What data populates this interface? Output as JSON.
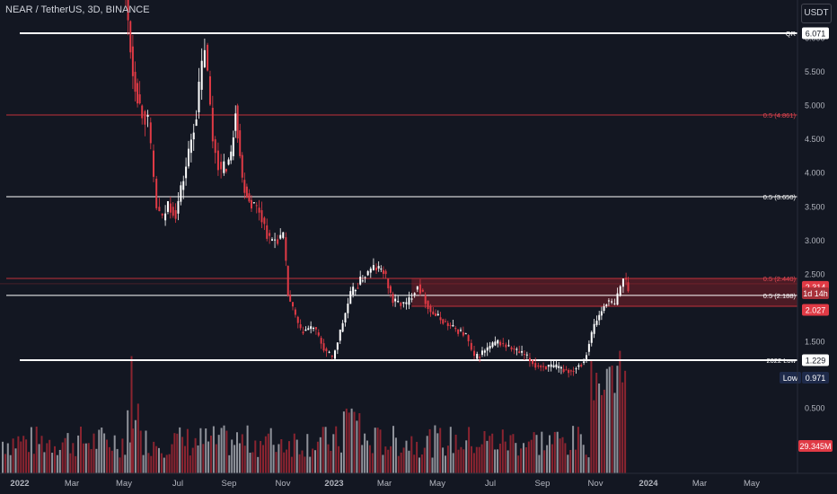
{
  "header": {
    "symbol": "NEAR / TetherUS, 3D, BINANCE",
    "currency": "USDT"
  },
  "colors": {
    "background": "#131722",
    "up": "#ffffff",
    "down": "#e03a45",
    "volume_up": "#8f929a",
    "volume_down": "#8b2430",
    "white_level": "#ffffff",
    "red_level": "#c2303a",
    "zone_fill": "#7a1f28",
    "axis_text": "#b2b5be"
  },
  "chart_data": {
    "type": "candlestick",
    "price_ticks": [
      "6.000",
      "5.500",
      "5.000",
      "4.500",
      "4.000",
      "3.500",
      "3.000",
      "2.500",
      "1.500"
    ],
    "volume_ticks": [
      "0.500"
    ],
    "x_ticks": [
      "2022",
      "Mar",
      "May",
      "Jul",
      "Sep",
      "Nov",
      "2023",
      "Mar",
      "May",
      "Jul",
      "Sep",
      "Nov",
      "2024",
      "Mar",
      "May"
    ],
    "levels": [
      {
        "label": "QR",
        "value": 6.071,
        "color": "white",
        "style": "thick",
        "badge": "6.071"
      },
      {
        "label": "0.5 (4.861)",
        "value": 4.861,
        "color": "red",
        "style": "thin"
      },
      {
        "label": "0.5 (3.650)",
        "value": 3.65,
        "color": "white",
        "style": "thin"
      },
      {
        "label": "0.5 (2.440)",
        "value": 2.44,
        "color": "red",
        "style": "thin"
      },
      {
        "label": "0.5 (2.188)",
        "value": 2.188,
        "color": "white",
        "style": "thin"
      },
      {
        "label": "2022 Low",
        "value": 1.229,
        "color": "white",
        "style": "thick",
        "badge": "1.229"
      }
    ],
    "zone": {
      "from_date": "2023-04-01",
      "top": 2.44,
      "bottom": 2.027
    },
    "price_badges": [
      {
        "text": "2.314",
        "value": 2.314,
        "kind": "current"
      },
      {
        "text": "1d 14h",
        "value": 2.22,
        "kind": "countdown"
      },
      {
        "text": "2.027",
        "value": 2.027,
        "kind": "zone"
      }
    ],
    "low_badge": {
      "label": "Low",
      "value": "0.971"
    },
    "volume_badge": "29.345M",
    "keypoints": [
      [
        "2022-05-03",
        7.0
      ],
      [
        "2022-05-14",
        5.5
      ],
      [
        "2022-05-22",
        5.0
      ],
      [
        "2022-06-01",
        4.75
      ],
      [
        "2022-06-11",
        3.5
      ],
      [
        "2022-06-18",
        3.3
      ],
      [
        "2022-06-24",
        3.55
      ],
      [
        "2022-07-03",
        3.4
      ],
      [
        "2022-07-15",
        4.1
      ],
      [
        "2022-07-27",
        4.9
      ],
      [
        "2022-08-06",
        5.9
      ],
      [
        "2022-08-15",
        4.5
      ],
      [
        "2022-08-25",
        4.0
      ],
      [
        "2022-09-05",
        4.25
      ],
      [
        "2022-09-10",
        5.0
      ],
      [
        "2022-09-18",
        3.9
      ],
      [
        "2022-09-26",
        3.6
      ],
      [
        "2022-10-08",
        3.45
      ],
      [
        "2022-10-20",
        3.0
      ],
      [
        "2022-11-05",
        3.05
      ],
      [
        "2022-11-10",
        2.2
      ],
      [
        "2022-11-25",
        1.65
      ],
      [
        "2022-12-10",
        1.72
      ],
      [
        "2022-12-22",
        1.4
      ],
      [
        "2023-01-01",
        1.25
      ],
      [
        "2023-01-10",
        1.65
      ],
      [
        "2023-01-22",
        2.2
      ],
      [
        "2023-02-05",
        2.45
      ],
      [
        "2023-02-18",
        2.6
      ],
      [
        "2023-03-01",
        2.55
      ],
      [
        "2023-03-12",
        2.1
      ],
      [
        "2023-03-28",
        2.05
      ],
      [
        "2023-04-10",
        2.35
      ],
      [
        "2023-04-25",
        1.95
      ],
      [
        "2023-05-15",
        1.75
      ],
      [
        "2023-06-05",
        1.6
      ],
      [
        "2023-06-15",
        1.25
      ],
      [
        "2023-06-30",
        1.4
      ],
      [
        "2023-07-12",
        1.5
      ],
      [
        "2023-07-25",
        1.42
      ],
      [
        "2023-08-12",
        1.3
      ],
      [
        "2023-08-25",
        1.15
      ],
      [
        "2023-09-15",
        1.12
      ],
      [
        "2023-10-05",
        1.07
      ],
      [
        "2023-10-20",
        1.22
      ],
      [
        "2023-11-01",
        1.75
      ],
      [
        "2023-11-15",
        2.1
      ],
      [
        "2023-11-25",
        2.05
      ],
      [
        "2023-12-05",
        2.45
      ],
      [
        "2023-12-10",
        2.314
      ]
    ]
  }
}
